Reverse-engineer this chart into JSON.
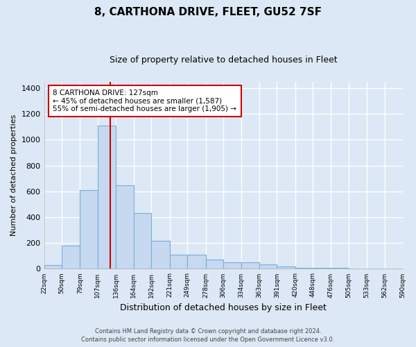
{
  "title": "8, CARTHONA DRIVE, FLEET, GU52 7SF",
  "subtitle": "Size of property relative to detached houses in Fleet",
  "xlabel": "Distribution of detached houses by size in Fleet",
  "ylabel": "Number of detached properties",
  "bin_edges": [
    22,
    50,
    79,
    107,
    136,
    164,
    192,
    221,
    249,
    278,
    306,
    334,
    363,
    391,
    420,
    448,
    476,
    505,
    533,
    562,
    590
  ],
  "bar_heights": [
    30,
    180,
    610,
    1110,
    650,
    430,
    220,
    110,
    110,
    70,
    50,
    50,
    35,
    20,
    10,
    10,
    8,
    5,
    5,
    5
  ],
  "bar_color": "#c6d9f1",
  "bar_edge_color": "#7aadd4",
  "property_size": 127,
  "vline_color": "#cc0000",
  "annotation_text": "8 CARTHONA DRIVE: 127sqm\n← 45% of detached houses are smaller (1,587)\n55% of semi-detached houses are larger (1,905) →",
  "annotation_box_color": "#ffffff",
  "annotation_box_edge_color": "#cc0000",
  "ylim": [
    0,
    1450
  ],
  "yticks": [
    0,
    200,
    400,
    600,
    800,
    1000,
    1200,
    1400
  ],
  "background_color": "#dce8f5",
  "grid_color": "#ffffff",
  "footer_line1": "Contains HM Land Registry data © Crown copyright and database right 2024.",
  "footer_line2": "Contains public sector information licensed under the Open Government Licence v3.0."
}
